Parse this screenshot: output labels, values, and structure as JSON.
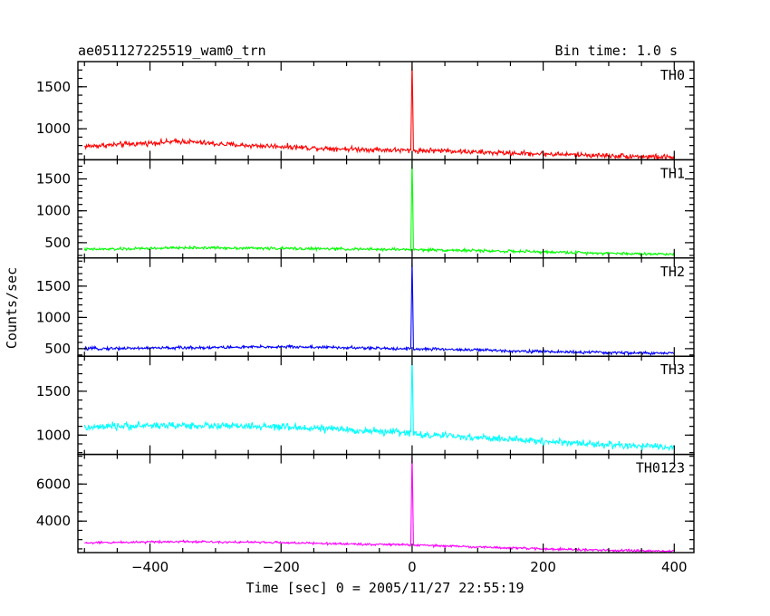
{
  "chart_data": {
    "type": "line",
    "title": "ae051127225519_wam0_trn",
    "subtitle": "Bin time: 1.0 s",
    "xlabel": "Time [sec] 0 = 2005/11/27 22:55:19",
    "ylabel": "Counts/sec",
    "xlim": [
      -510,
      430
    ],
    "x_ticks": [
      -400,
      -200,
      0,
      200,
      400
    ],
    "x_tick_labels": [
      "−400",
      "−200",
      "0",
      "200",
      "400"
    ],
    "bin_time_s": 1.0,
    "grid": false,
    "panels": [
      {
        "name": "TH0",
        "color": "#ff0000",
        "ylim": [
          630,
          1800
        ],
        "y_ticks": [
          1000,
          1500
        ],
        "y_tick_labels": [
          "1000",
          "1500"
        ],
        "x": [
          -500,
          -450,
          -400,
          -350,
          -300,
          -250,
          -200,
          -150,
          -100,
          -50,
          -2,
          0,
          2,
          50,
          100,
          150,
          200,
          250,
          300,
          350,
          400
        ],
        "values": [
          790,
          810,
          830,
          850,
          820,
          800,
          790,
          770,
          760,
          750,
          740,
          1800,
          740,
          740,
          720,
          710,
          700,
          690,
          680,
          670,
          660
        ],
        "noise": 30
      },
      {
        "name": "TH1",
        "color": "#00ff00",
        "ylim": [
          260,
          1800
        ],
        "y_ticks": [
          500,
          1000,
          1500
        ],
        "y_tick_labels": [
          "500",
          "1000",
          "1500"
        ],
        "x": [
          -500,
          -450,
          -400,
          -350,
          -300,
          -250,
          -200,
          -150,
          -100,
          -50,
          -2,
          0,
          2,
          50,
          100,
          150,
          200,
          250,
          300,
          350,
          400
        ],
        "values": [
          395,
          400,
          410,
          420,
          420,
          415,
          410,
          405,
          400,
          395,
          395,
          1800,
          390,
          385,
          375,
          365,
          355,
          345,
          335,
          325,
          320
        ],
        "noise": 22
      },
      {
        "name": "TH2",
        "color": "#0000ff",
        "ylim": [
          380,
          1950
        ],
        "y_ticks": [
          500,
          1000,
          1500
        ],
        "y_tick_labels": [
          "500",
          "1000",
          "1500"
        ],
        "x": [
          -500,
          -450,
          -400,
          -350,
          -300,
          -250,
          -200,
          -150,
          -100,
          -50,
          -2,
          0,
          2,
          50,
          100,
          150,
          200,
          250,
          300,
          350,
          400
        ],
        "values": [
          500,
          505,
          510,
          515,
          520,
          525,
          530,
          525,
          515,
          505,
          500,
          1950,
          495,
          490,
          480,
          465,
          455,
          445,
          435,
          430,
          425
        ],
        "noise": 24
      },
      {
        "name": "TH3",
        "color": "#00ffff",
        "ylim": [
          780,
          1900
        ],
        "y_ticks": [
          1000,
          1500
        ],
        "y_tick_labels": [
          "1000",
          "1500"
        ],
        "x": [
          -500,
          -450,
          -400,
          -350,
          -300,
          -250,
          -200,
          -150,
          -100,
          -50,
          -2,
          0,
          2,
          50,
          100,
          150,
          200,
          250,
          300,
          350,
          400
        ],
        "values": [
          1080,
          1100,
          1110,
          1110,
          1105,
          1100,
          1090,
          1080,
          1060,
          1040,
          1030,
          1900,
          1010,
          990,
          970,
          950,
          930,
          910,
          890,
          870,
          860
        ],
        "noise": 40
      },
      {
        "name": "TH0123",
        "color": "#ff00ff",
        "ylim": [
          2300,
          7600
        ],
        "y_ticks": [
          4000,
          6000
        ],
        "y_tick_labels": [
          "4000",
          "6000"
        ],
        "x": [
          -500,
          -450,
          -400,
          -350,
          -300,
          -250,
          -200,
          -150,
          -100,
          -50,
          -2,
          0,
          2,
          50,
          100,
          150,
          200,
          250,
          300,
          350,
          400
        ],
        "values": [
          2820,
          2850,
          2880,
          2900,
          2880,
          2860,
          2840,
          2800,
          2770,
          2740,
          2720,
          7600,
          2700,
          2660,
          2600,
          2550,
          2500,
          2460,
          2420,
          2390,
          2370
        ],
        "noise": 60
      }
    ]
  }
}
